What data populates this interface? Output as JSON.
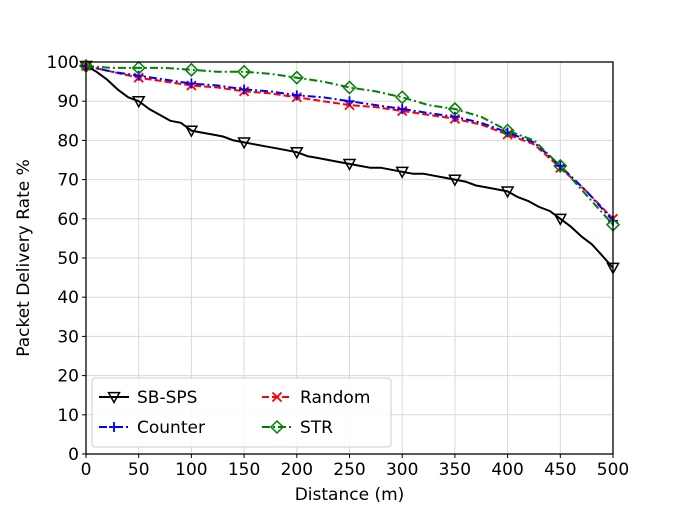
{
  "chart_data": {
    "type": "line",
    "title": "",
    "xlabel": "Distance (m)",
    "ylabel": "Packet Delivery Rate %",
    "xlim": [
      0,
      500
    ],
    "ylim": [
      0,
      100
    ],
    "x_ticks": [
      0,
      50,
      100,
      150,
      200,
      250,
      300,
      350,
      400,
      450,
      500
    ],
    "y_ticks": [
      0,
      10,
      20,
      30,
      40,
      50,
      60,
      70,
      80,
      90,
      100
    ],
    "grid": true,
    "legend_position": "lower-left",
    "series": [
      {
        "name": "SB-SPS",
        "color": "#000000",
        "line_style": "solid",
        "marker": "triangle-down",
        "marker_x": [
          0,
          50,
          100,
          150,
          200,
          250,
          300,
          350,
          400,
          450,
          500
        ],
        "x": [
          0,
          10,
          20,
          30,
          40,
          50,
          60,
          70,
          80,
          90,
          100,
          110,
          120,
          130,
          140,
          150,
          160,
          170,
          180,
          190,
          200,
          210,
          220,
          230,
          240,
          250,
          260,
          270,
          280,
          290,
          300,
          310,
          320,
          330,
          340,
          350,
          360,
          370,
          380,
          390,
          400,
          410,
          420,
          430,
          440,
          450,
          460,
          470,
          480,
          490,
          500
        ],
        "values": [
          99,
          97.5,
          95.5,
          93,
          91,
          90,
          88,
          86.5,
          85,
          84.5,
          82.5,
          82,
          81.5,
          81,
          80,
          79.5,
          79,
          78.5,
          78,
          77.5,
          77,
          76,
          75.5,
          75,
          74.5,
          74,
          73.5,
          73,
          73,
          72.5,
          72,
          71.5,
          71.5,
          71,
          70.5,
          70,
          69.5,
          68.5,
          68,
          67.5,
          67,
          65.5,
          64.5,
          63,
          62,
          60,
          58,
          55.5,
          53.5,
          50.5,
          47.5
        ]
      },
      {
        "name": "Random",
        "color": "#ff0000",
        "line_style": "dashed",
        "marker": "x",
        "marker_x": [
          0,
          50,
          100,
          150,
          200,
          250,
          300,
          350,
          400,
          450,
          500
        ],
        "x": [
          0,
          25,
          50,
          75,
          100,
          125,
          150,
          175,
          200,
          225,
          250,
          275,
          300,
          325,
          350,
          375,
          400,
          425,
          450,
          475,
          500
        ],
        "values": [
          99,
          97.5,
          96,
          95,
          94,
          93.5,
          92.5,
          92,
          91,
          90,
          89,
          88.5,
          87.5,
          86.5,
          85.5,
          84,
          81.5,
          79,
          73,
          67,
          60
        ]
      },
      {
        "name": "Counter",
        "color": "#0000ff",
        "line_style": "dashdot",
        "marker": "plus",
        "marker_x": [
          0,
          50,
          100,
          150,
          200,
          250,
          300,
          350,
          400,
          450,
          500
        ],
        "x": [
          0,
          25,
          50,
          75,
          100,
          125,
          150,
          175,
          200,
          225,
          250,
          275,
          300,
          325,
          350,
          375,
          400,
          425,
          450,
          475,
          500
        ],
        "values": [
          99,
          97.5,
          96.5,
          95.5,
          94.5,
          94,
          93,
          92.5,
          91.5,
          91,
          90,
          89,
          88,
          87,
          86,
          84.5,
          82,
          79.5,
          73.5,
          67,
          59.5
        ]
      },
      {
        "name": "STR",
        "color": "#008000",
        "line_style": "dashdot",
        "marker": "diamond",
        "marker_x": [
          0,
          50,
          100,
          150,
          200,
          250,
          300,
          350,
          400,
          450,
          500
        ],
        "x": [
          0,
          25,
          50,
          75,
          100,
          125,
          150,
          175,
          200,
          225,
          250,
          275,
          300,
          325,
          350,
          375,
          400,
          425,
          450,
          475,
          500
        ],
        "values": [
          99,
          98.5,
          98.5,
          98.5,
          98,
          97.5,
          97.5,
          97,
          96,
          95,
          93.5,
          92.5,
          91,
          89,
          88,
          86,
          82.5,
          80,
          73.5,
          66,
          58.5
        ]
      }
    ]
  }
}
